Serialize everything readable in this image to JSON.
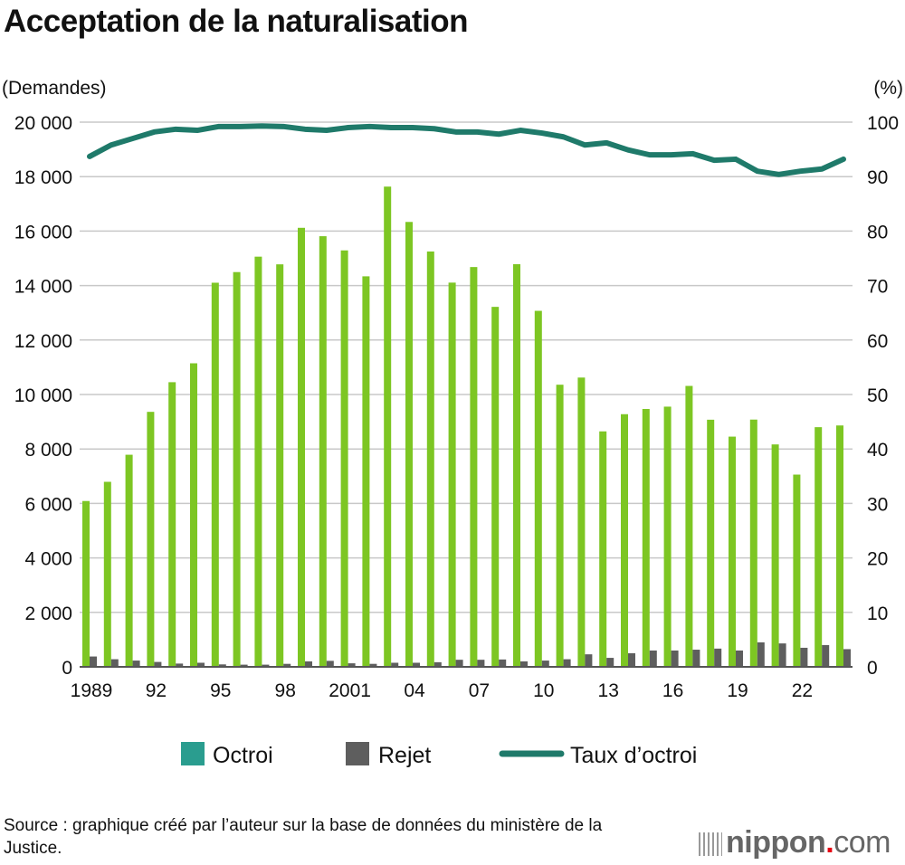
{
  "chart_data": {
    "type": "bar",
    "title": "Acceptation de la naturalisation",
    "ylabel": "(Demandes)",
    "y2label": "(%)",
    "ylim": [
      0,
      20000
    ],
    "y2lim": [
      0,
      100
    ],
    "yticks": [
      "0",
      "2 000",
      "4 000",
      "6 000",
      "8 000",
      "10 000",
      "12 000",
      "14 000",
      "16 000",
      "18 000",
      "20 000"
    ],
    "y2ticks": [
      "0",
      "10",
      "20",
      "30",
      "40",
      "50",
      "60",
      "70",
      "80",
      "90",
      "100"
    ],
    "x": [
      1989,
      1990,
      1991,
      1992,
      1993,
      1994,
      1995,
      1996,
      1997,
      1998,
      1999,
      2000,
      2001,
      2002,
      2003,
      2004,
      2005,
      2006,
      2007,
      2008,
      2009,
      2010,
      2011,
      2012,
      2013,
      2014,
      2015,
      2016,
      2017,
      2018,
      2019,
      2020,
      2021,
      2022,
      2023,
      2024
    ],
    "xticks": [
      {
        "i": 0,
        "label": "1989"
      },
      {
        "i": 3,
        "label": "92"
      },
      {
        "i": 6,
        "label": "95"
      },
      {
        "i": 9,
        "label": "98"
      },
      {
        "i": 12,
        "label": "2001"
      },
      {
        "i": 15,
        "label": "04"
      },
      {
        "i": 18,
        "label": "07"
      },
      {
        "i": 21,
        "label": "10"
      },
      {
        "i": 24,
        "label": "13"
      },
      {
        "i": 27,
        "label": "16"
      },
      {
        "i": 30,
        "label": "19"
      },
      {
        "i": 33,
        "label": "22"
      }
    ],
    "grid": true,
    "legend_position": "bottom",
    "series": [
      {
        "name": "Octroi",
        "type": "bar",
        "axis": "left",
        "color": "#7dc623",
        "legend_color": "#2a9d8f",
        "values": [
          6089,
          6794,
          7788,
          9363,
          10452,
          11146,
          14104,
          14495,
          15061,
          14779,
          16120,
          15812,
          15291,
          14339,
          17633,
          16336,
          15251,
          14108,
          14680,
          13218,
          14784,
          13072,
          10359,
          10622,
          8646,
          9277,
          9469,
          9554,
          10315,
          9074,
          8453,
          9079,
          8167,
          7059,
          8800,
          8863
        ]
      },
      {
        "name": "Rejet",
        "type": "bar",
        "axis": "left",
        "color": "#5e5e5e",
        "values": [
          380,
          280,
          230,
          180,
          120,
          150,
          90,
          80,
          80,
          110,
          200,
          220,
          130,
          110,
          150,
          150,
          170,
          260,
          260,
          270,
          200,
          230,
          280,
          460,
          330,
          500,
          600,
          600,
          630,
          670,
          600,
          900,
          860,
          700,
          800,
          650
        ]
      },
      {
        "name": "Taux d’octroi",
        "type": "line",
        "axis": "right",
        "color": "#1f7a6a",
        "values": [
          93.7,
          95.8,
          97.0,
          98.2,
          98.7,
          98.5,
          99.2,
          99.2,
          99.3,
          99.2,
          98.7,
          98.5,
          99.0,
          99.2,
          99.0,
          99.0,
          98.8,
          98.2,
          98.2,
          97.8,
          98.5,
          98.0,
          97.3,
          95.8,
          96.2,
          94.9,
          94.0,
          94.0,
          94.2,
          93.0,
          93.2,
          91.0,
          90.4,
          91.0,
          91.4,
          93.2
        ]
      }
    ]
  },
  "source": "Source : graphique créé par l’auteur sur la base de données du ministère de la Justice.",
  "logo": {
    "name": "nippon",
    "dot": ".",
    "com": "com"
  }
}
